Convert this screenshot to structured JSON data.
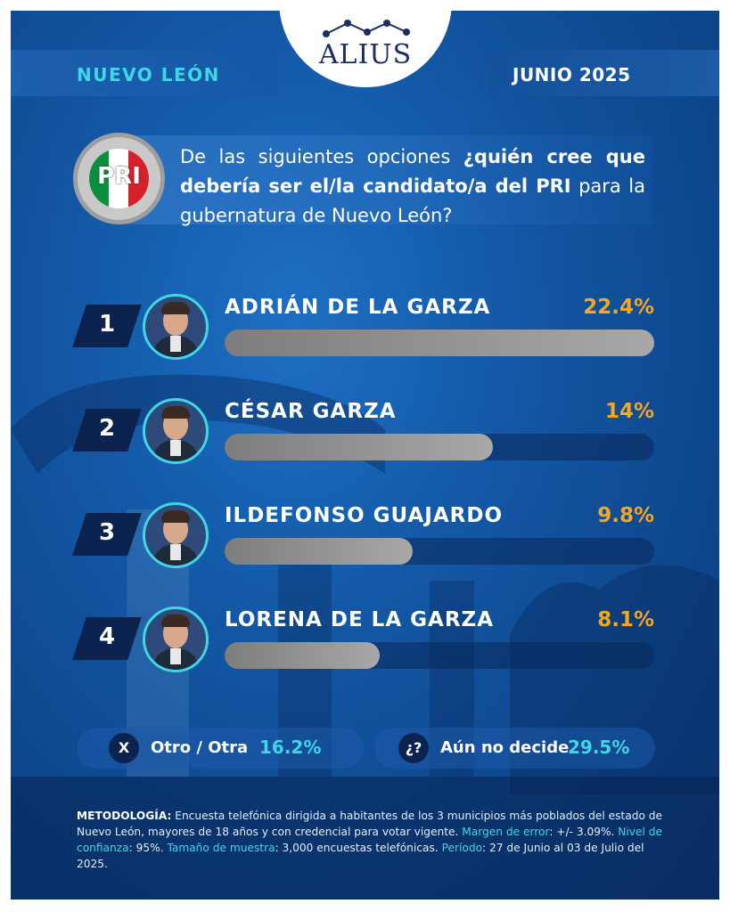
{
  "brand": {
    "name": "ALIUS"
  },
  "header": {
    "region": "NUEVO LEÓN",
    "date": "JUNIO 2025"
  },
  "party_logo": {
    "letters": "PRI",
    "colors": [
      "#0a8f3c",
      "#ffffff",
      "#d6202a"
    ]
  },
  "question": {
    "part1": "De las siguientes opciones ",
    "part2": "¿quién cree que debería ser el/la candidato/a del ",
    "party": "PRI",
    "part3": " para la gubernatura de Nuevo León?"
  },
  "colors": {
    "accent": "#3fd7e6",
    "percent": "#f5a623",
    "rank_bg": "#0c2350"
  },
  "chart_data": {
    "type": "bar",
    "categories": [
      "ADRIÁN DE LA GARZA",
      "CÉSAR GARZA",
      "ILDEFONSO GUAJARDO",
      "LORENA DE LA GARZA"
    ],
    "values": [
      22.4,
      14,
      9.8,
      8.1
    ],
    "value_labels": [
      "22.4%",
      "14%",
      "9.8%",
      "8.1%"
    ],
    "ranks": [
      "1",
      "2",
      "3",
      "4"
    ],
    "unit": "%",
    "orientation": "horizontal"
  },
  "extras": [
    {
      "icon": "X",
      "label": "Otro / Otra",
      "value": "16.2%"
    },
    {
      "icon": "¿?",
      "label": "Aún no decide",
      "value": "29.5%"
    }
  ],
  "methodology": {
    "title": "METODOLOGÍA:",
    "text1": " Encuesta telefónica dirigida a habitantes de los 3 municipios más poblados del estado de Nuevo León, mayores de 18 años y con credencial para votar vigente. ",
    "margin_key": "Margen de error",
    "margin_val": ": +/- 3.09%. ",
    "conf_key": "Nivel de confianza",
    "conf_val": ": 95%. ",
    "sample_key": "Tamaño de muestra",
    "sample_val": ": 3,000 encuestas telefónicas. ",
    "period_key": "Período",
    "period_val": ": 27 de Junio al 03 de Julio del 2025."
  }
}
